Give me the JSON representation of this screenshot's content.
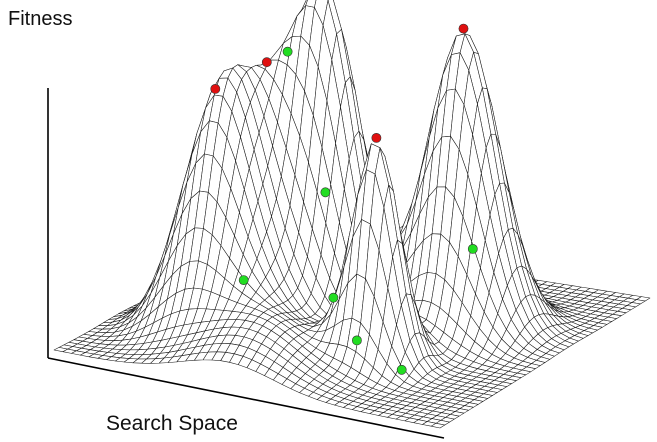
{
  "axes": {
    "y_label": "Fitness",
    "x_label": "Search Space"
  },
  "colors": {
    "mesh": "#1a1a1a",
    "surface": "#ffffff",
    "axis": "#000000",
    "peak_marker": "#e01010",
    "slope_marker": "#22dd22"
  },
  "landscape": {
    "peaks": [
      {
        "u": 0.25,
        "v": 0.3,
        "height": 0.62,
        "spread": 0.085
      },
      {
        "u": 0.3,
        "v": 0.45,
        "height": 0.62,
        "spread": 0.1
      },
      {
        "u": 0.43,
        "v": 0.52,
        "height": 0.88,
        "spread": 0.075
      },
      {
        "u": 0.67,
        "v": 0.3,
        "height": 0.74,
        "spread": 0.055
      },
      {
        "u": 0.72,
        "v": 0.62,
        "height": 1.0,
        "spread": 0.085
      },
      {
        "u": 0.45,
        "v": 0.15,
        "height": 0.17,
        "spread": 0.12
      },
      {
        "u": 0.15,
        "v": 0.7,
        "height": 0.06,
        "spread": 0.08
      }
    ],
    "max_markers": 5,
    "local_optimum_markers": 7
  }
}
